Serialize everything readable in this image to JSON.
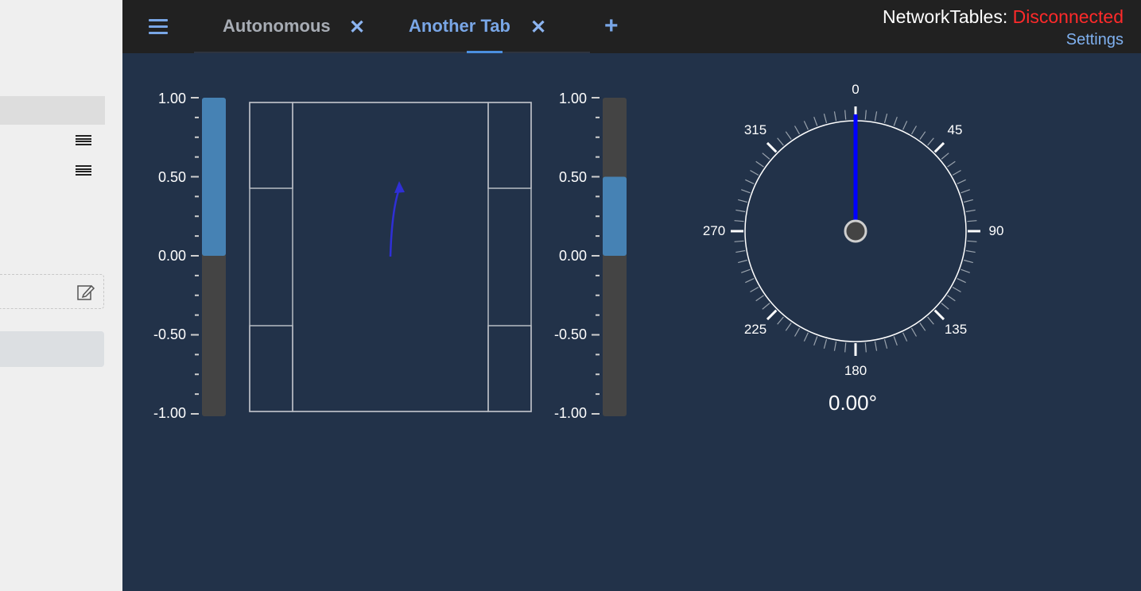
{
  "sidebar": {
    "edit_icon": "edit-icon",
    "list_icon": "list-icon"
  },
  "header": {
    "menu_icon": "menu-icon",
    "tabs": [
      {
        "label": "Autonomous",
        "close": "✕"
      },
      {
        "label": "Another Tab",
        "close": "✕"
      }
    ],
    "add_tab_label": "+",
    "status_prefix": "NetworkTables: ",
    "status_state": "Disconnected",
    "settings_label": "Settings"
  },
  "left_bar": {
    "ticks": [
      "1.00",
      "0.50",
      "0.00",
      "-0.50",
      "-1.00"
    ],
    "value": 1.0,
    "min": -1.0,
    "max": 1.0
  },
  "right_bar": {
    "ticks": [
      "1.00",
      "0.50",
      "0.00",
      "-0.50",
      "-1.00"
    ],
    "value": 0.5,
    "min": -1.0,
    "max": 1.0
  },
  "gyro": {
    "labels": [
      "0",
      "45",
      "90",
      "135",
      "180",
      "225",
      "270",
      "315"
    ],
    "heading_text": "0.00°",
    "heading": 0
  },
  "colors": {
    "bar_fill": "#4682b4",
    "bar_track": "#444444",
    "needle": "#0000ff",
    "status_disconnected": "#ff2a2a",
    "accent": "#79a6e6"
  }
}
